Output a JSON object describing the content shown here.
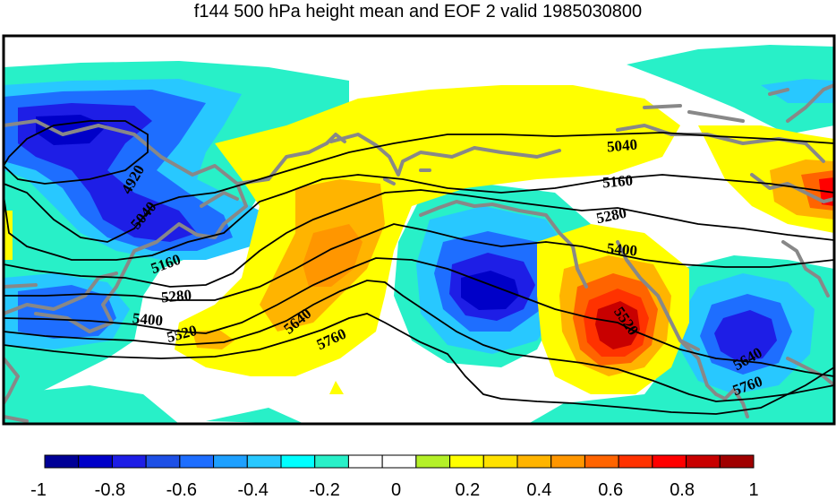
{
  "title": "f144 500 hPa height mean and EOF 2 valid 1985030800",
  "contour_labels": [
    {
      "text": "4920",
      "rotate": -60
    },
    {
      "text": "5040",
      "rotate": -50
    },
    {
      "text": "5160",
      "rotate": -20
    },
    {
      "text": "5280",
      "rotate": -5
    },
    {
      "text": "5400",
      "rotate": 5
    },
    {
      "text": "5520",
      "rotate": -15
    },
    {
      "text": "5640",
      "rotate": -40
    },
    {
      "text": "5760",
      "rotate": -25
    },
    {
      "text": "5040",
      "rotate": -5
    },
    {
      "text": "5160",
      "rotate": -5
    },
    {
      "text": "5280",
      "rotate": -12
    },
    {
      "text": "5400",
      "rotate": 5
    },
    {
      "text": "5520",
      "rotate": 55
    },
    {
      "text": "5640",
      "rotate": -30
    },
    {
      "text": "5760",
      "rotate": -20
    }
  ],
  "colorbar": {
    "colors": [
      "#000096",
      "#0000c8",
      "#1e1ee6",
      "#1e50e6",
      "#1e6eff",
      "#1ea0ff",
      "#28c8ff",
      "#00ffff",
      "#28f0c8",
      "#ffffff",
      "#ffffff",
      "#b4f028",
      "#ffff00",
      "#ffe100",
      "#ffb400",
      "#ff9600",
      "#ff6400",
      "#ff3200",
      "#ff0000",
      "#c80000",
      "#a00000"
    ],
    "tick_labels": [
      "-1",
      "-0.8",
      "-0.6",
      "-0.4",
      "-0.2",
      "0",
      "0.2",
      "0.4",
      "0.6",
      "0.8",
      "1"
    ]
  },
  "colors": {
    "coastline": "#888888",
    "contour": "#000000"
  }
}
